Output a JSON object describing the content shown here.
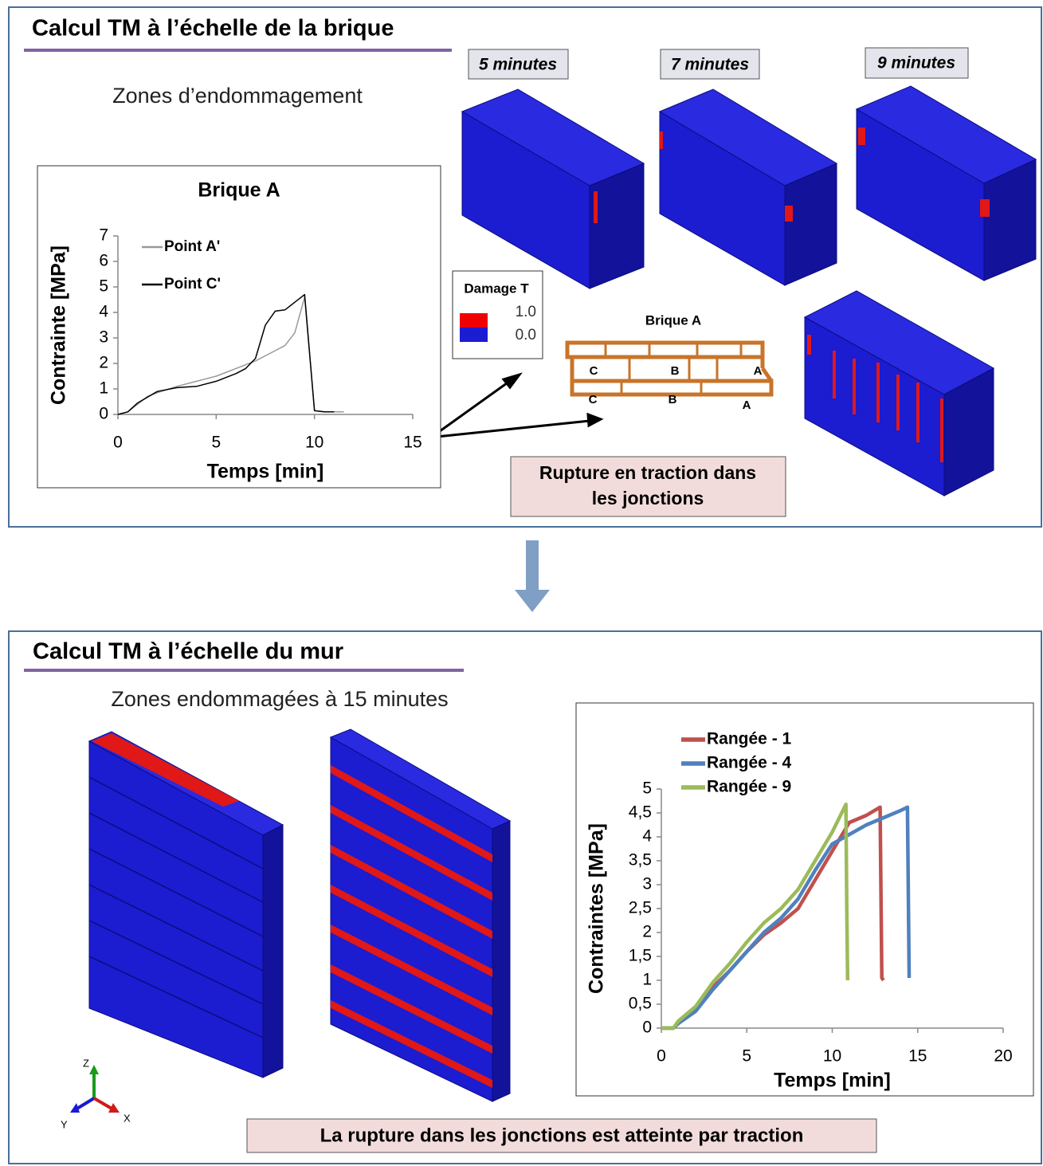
{
  "top_panel": {
    "title": "Calcul TM à l’échelle de la brique",
    "subtitle": "Zones d’endommagement",
    "time_labels": [
      "5 minutes",
      "7 minutes",
      "9 minutes"
    ],
    "damage_legend": {
      "title": "Damage T",
      "max": "1.0",
      "min": "0.0"
    },
    "inset": {
      "title": "Brique A",
      "points": [
        "C",
        "B",
        "A",
        "C",
        "B",
        "A"
      ]
    },
    "callout": [
      "Rupture en traction dans",
      "les jonctions"
    ]
  },
  "bottom_panel": {
    "title": "Calcul TM à l’échelle du mur",
    "subtitle": "Zones endommagées à 15 minutes",
    "axes_triad": [
      "Z",
      "Y",
      "X"
    ],
    "callout": "La rupture dans les jonctions est atteinte par traction"
  },
  "chart_data": [
    {
      "type": "line",
      "title": "Brique A",
      "x_label": "Temps [min]",
      "y_label": "Contrainte [MPa]",
      "xlim": [
        0,
        15
      ],
      "ylim": [
        0,
        7
      ],
      "xticks": [
        0,
        5,
        10,
        15
      ],
      "yticks": [
        0,
        1,
        2,
        3,
        4,
        5,
        6,
        7
      ],
      "grid": false,
      "legend": "top-left",
      "series": [
        {
          "name": "Point A'",
          "color": "#999999",
          "x": [
            0,
            0.5,
            1,
            1.5,
            2,
            3,
            4,
            5,
            6,
            7,
            8,
            8.5,
            9,
            9.5,
            10,
            10.5,
            11.5
          ],
          "values": [
            0,
            0.1,
            0.4,
            0.7,
            0.85,
            1.1,
            1.3,
            1.5,
            1.8,
            2.1,
            2.5,
            2.7,
            3.2,
            4.6,
            0.15,
            0.1,
            0.1
          ]
        },
        {
          "name": "Point C'",
          "color": "#000000",
          "x": [
            0,
            0.5,
            1,
            2,
            3,
            4,
            5,
            6,
            6.5,
            7,
            7.5,
            8,
            8.5,
            9,
            9.5,
            10,
            10.5,
            11
          ],
          "values": [
            0,
            0.1,
            0.45,
            0.9,
            1.05,
            1.1,
            1.3,
            1.6,
            1.8,
            2.2,
            3.5,
            4.05,
            4.1,
            4.4,
            4.7,
            0.15,
            0.1,
            0.1
          ]
        }
      ]
    },
    {
      "type": "line",
      "x_label": "Temps [min]",
      "y_label": "Contraintes [MPa]",
      "xlim": [
        0,
        20
      ],
      "ylim": [
        0,
        5
      ],
      "xticks": [
        0,
        5,
        10,
        15,
        20
      ],
      "yticks": [
        0,
        {
          "value": 0.5,
          "label": "0,5"
        },
        1,
        {
          "value": 1.5,
          "label": "1,5"
        },
        2,
        {
          "value": 2.5,
          "label": "2,5"
        },
        3,
        {
          "value": 3.5,
          "label": "3,5"
        },
        4,
        {
          "value": 4.5,
          "label": "4,5"
        },
        5
      ],
      "grid": false,
      "legend": "top-left",
      "series": [
        {
          "name": "Rangée - 1",
          "color": "#c0504d",
          "x": [
            0,
            0.7,
            1,
            2,
            3,
            4,
            5,
            6,
            7,
            8,
            9,
            10,
            11,
            12,
            12.8,
            12.9,
            13
          ],
          "values": [
            0,
            0,
            0.1,
            0.4,
            0.85,
            1.2,
            1.6,
            1.95,
            2.2,
            2.5,
            3.1,
            3.7,
            4.3,
            4.45,
            4.62,
            1.05,
            1.0
          ]
        },
        {
          "name": "Rangée - 4",
          "color": "#4f81bd",
          "x": [
            0,
            0.7,
            1,
            2,
            3,
            4,
            5,
            6,
            7,
            8,
            9,
            10,
            11,
            12,
            13,
            14,
            14.4,
            14.5
          ],
          "values": [
            0,
            0,
            0.1,
            0.35,
            0.8,
            1.2,
            1.6,
            2.0,
            2.3,
            2.7,
            3.3,
            3.85,
            4.05,
            4.25,
            4.4,
            4.55,
            4.62,
            1.05
          ]
        },
        {
          "name": "Rangée - 9",
          "color": "#9bbb59",
          "x": [
            0,
            0.7,
            1,
            2,
            3,
            4,
            5,
            6,
            7,
            8,
            9,
            10,
            10.8,
            10.85,
            10.9
          ],
          "values": [
            0,
            0,
            0.15,
            0.45,
            0.95,
            1.35,
            1.8,
            2.2,
            2.5,
            2.9,
            3.5,
            4.1,
            4.68,
            2.5,
            1.0
          ]
        }
      ]
    }
  ]
}
